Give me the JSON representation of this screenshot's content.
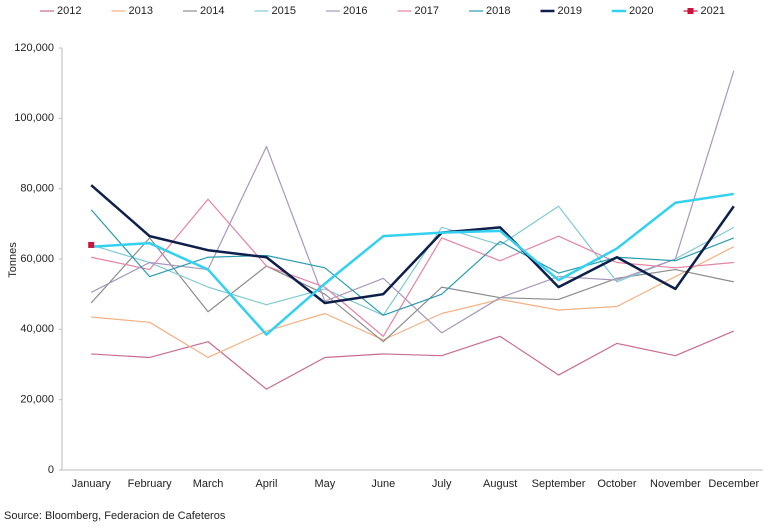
{
  "chart_data": {
    "type": "line",
    "y_label": "Tonnes",
    "source": "Source: Bloomberg, Federacion de Cafeteros",
    "categories": [
      "January",
      "February",
      "March",
      "April",
      "May",
      "June",
      "July",
      "August",
      "September",
      "October",
      "November",
      "December"
    ],
    "ylim": [
      0,
      120000
    ],
    "yticks": [
      0,
      {
        "value": 20000,
        "label": "20,000"
      },
      {
        "value": 40000,
        "label": "40,000"
      },
      {
        "value": 60000,
        "label": "60,000"
      },
      {
        "value": 80000,
        "label": "80,000"
      },
      {
        "value": 100000,
        "label": "100,000"
      },
      {
        "value": 120000,
        "label": "120,000"
      }
    ],
    "series": [
      {
        "name": "2012",
        "color": "#c96b92",
        "values": [
          33000,
          32000,
          36500,
          23000,
          32000,
          33000,
          32500,
          38000,
          27000,
          36000,
          32500,
          39500
        ]
      },
      {
        "name": "2013",
        "color": "#f4b183",
        "values": [
          43500,
          42000,
          32000,
          39500,
          44500,
          37000,
          44500,
          48500,
          45500,
          46500,
          55000,
          63500
        ]
      },
      {
        "name": "2014",
        "color": "#8c8c8c",
        "values": [
          47500,
          66000,
          45000,
          58000,
          50000,
          36500,
          52000,
          49000,
          48500,
          54500,
          57000,
          53500
        ]
      },
      {
        "name": "2015",
        "color": "#7fcad6",
        "values": [
          64000,
          59000,
          52000,
          47000,
          51500,
          44000,
          69000,
          64000,
          75000,
          53500,
          60000,
          69000
        ]
      },
      {
        "name": "2016",
        "color": "#a897bd",
        "values": [
          50500,
          59000,
          57000,
          92000,
          48000,
          54500,
          39000,
          49000,
          55000,
          54000,
          60000,
          113500
        ]
      },
      {
        "name": "2017",
        "color": "#e384a6",
        "values": [
          60500,
          57000,
          77000,
          58000,
          52000,
          38000,
          66000,
          59500,
          66500,
          59000,
          57500,
          59000
        ]
      },
      {
        "name": "2018",
        "color": "#2a9cb0",
        "values": [
          74000,
          55000,
          60500,
          61000,
          57500,
          44000,
          50000,
          65000,
          56000,
          60500,
          59500,
          66000
        ]
      },
      {
        "name": "2019",
        "color": "#0d1f4a",
        "width": 2.5,
        "values": [
          81000,
          66500,
          62500,
          60500,
          47500,
          50000,
          67500,
          69000,
          52000,
          60500,
          51500,
          75000
        ]
      },
      {
        "name": "2020",
        "color": "#33d0f0",
        "width": 2.5,
        "values": [
          63500,
          64500,
          57000,
          38500,
          53000,
          66500,
          67500,
          68000,
          54000,
          63000,
          76000,
          78500
        ]
      },
      {
        "name": "2021",
        "color": "#c8153c",
        "marker": true,
        "values": [
          64000,
          null,
          null,
          null,
          null,
          null,
          null,
          null,
          null,
          null,
          null,
          null
        ]
      }
    ]
  }
}
